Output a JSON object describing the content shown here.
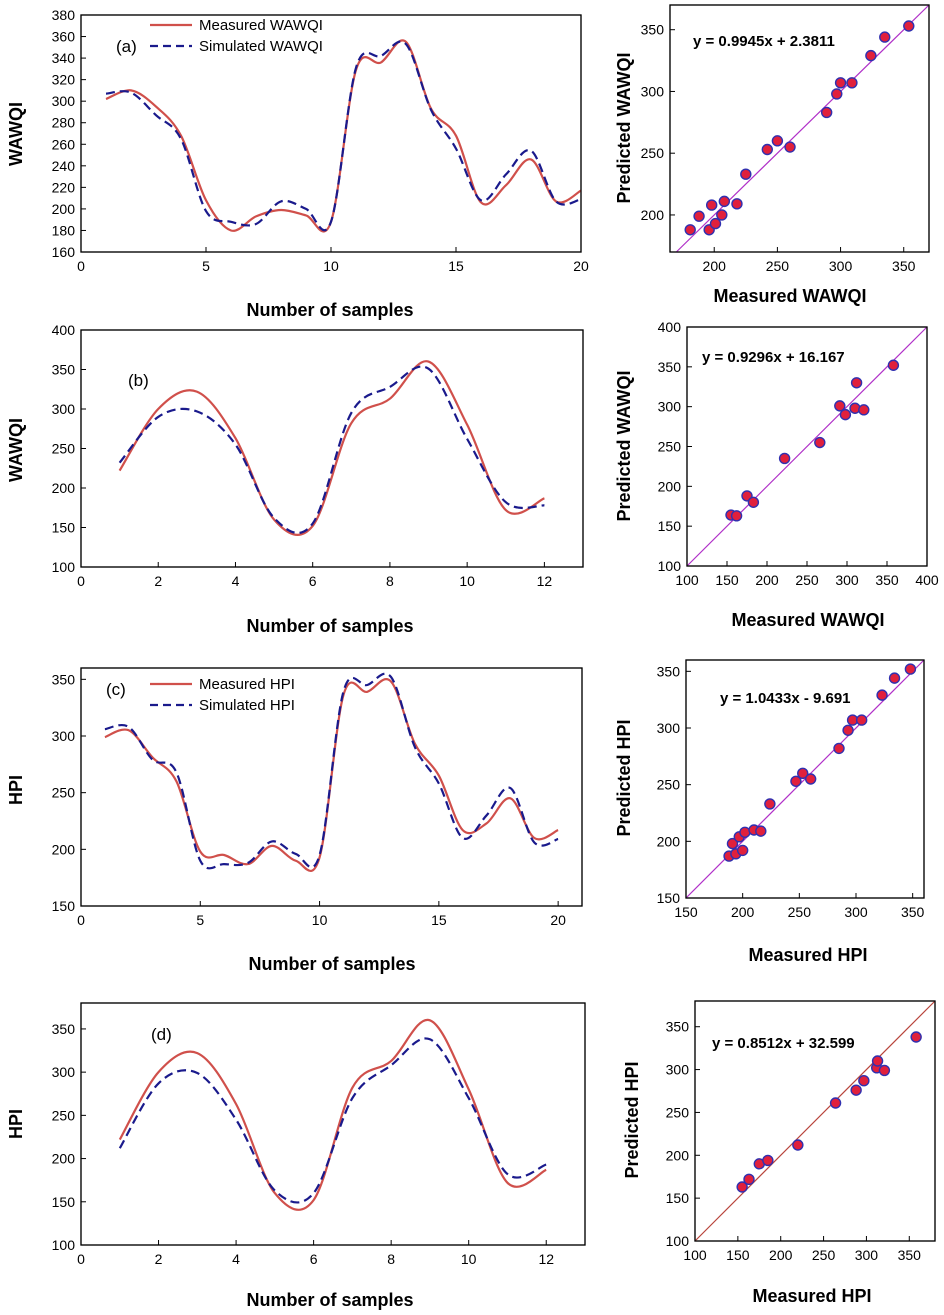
{
  "colors": {
    "measured": "#d0504b",
    "simulated": "#1a1a8c",
    "point_fill": "#e0203c",
    "point_edge": "#3030b0",
    "identity_purple": "#b030c8",
    "identity_red": "#b8453c"
  },
  "chart_data": [
    {
      "type": "line",
      "panel": "(a)",
      "legend": true,
      "x": [
        1,
        2,
        3,
        4,
        5,
        6,
        7,
        8,
        9,
        10,
        11,
        12,
        13,
        14,
        15,
        16,
        17,
        18,
        19,
        20
      ],
      "series": [
        {
          "name": "Measured WAWQI",
          "values": [
            302,
            310,
            295,
            268,
            208,
            180,
            193,
            199,
            194,
            188,
            329,
            336,
            355,
            293,
            268,
            206,
            222,
            246,
            207,
            217
          ]
        },
        {
          "name": "Simulated WAWQI",
          "values": [
            307,
            308,
            287,
            265,
            198,
            188,
            186,
            207,
            200,
            188,
            331,
            342,
            353,
            292,
            256,
            208,
            232,
            254,
            207,
            209
          ]
        }
      ],
      "xlabel": "Number of samples",
      "ylabel": "WAWQI",
      "xlim": [
        0,
        20
      ],
      "ylim": [
        160,
        380
      ],
      "xticks": [
        "0",
        "5",
        "10",
        "15",
        "20"
      ],
      "yticks": [
        "160",
        "180",
        "200",
        "220",
        "240",
        "260",
        "280",
        "300",
        "320",
        "340",
        "360",
        "380"
      ]
    },
    {
      "type": "scatter",
      "equation": "y = 0.9945x + 2.3811",
      "identity_line": "purple",
      "points": [
        [
          181,
          188
        ],
        [
          188,
          199
        ],
        [
          196,
          188
        ],
        [
          198,
          208
        ],
        [
          201,
          193
        ],
        [
          206,
          200
        ],
        [
          208,
          211
        ],
        [
          218,
          209
        ],
        [
          225,
          233
        ],
        [
          242,
          253
        ],
        [
          250,
          260
        ],
        [
          260,
          255
        ],
        [
          289,
          283
        ],
        [
          297,
          298
        ],
        [
          300,
          307
        ],
        [
          309,
          307
        ],
        [
          324,
          329
        ],
        [
          335,
          344
        ],
        [
          354,
          353
        ]
      ],
      "xlabel": "Measured WAWQI",
      "ylabel": "Predicted WAWQI",
      "xlim": [
        165,
        370
      ],
      "ylim": [
        170,
        370
      ],
      "xticks": [
        "200",
        "250",
        "300",
        "350"
      ],
      "yticks": [
        "200",
        "250",
        "300",
        "350"
      ]
    },
    {
      "type": "line",
      "panel": "(b)",
      "legend": false,
      "x": [
        1,
        2,
        3,
        4,
        5,
        6,
        7,
        8,
        9,
        10,
        11,
        12
      ],
      "series": [
        {
          "name": "Measured WAWQI",
          "values": [
            222,
            300,
            322,
            263,
            160,
            152,
            282,
            313,
            360,
            280,
            172,
            187
          ]
        },
        {
          "name": "Simulated WAWQI",
          "values": [
            232,
            290,
            297,
            255,
            162,
            155,
            295,
            328,
            351,
            262,
            182,
            178
          ]
        }
      ],
      "xlabel": "Number of samples",
      "ylabel": "WAWQI",
      "xlim": [
        0,
        13
      ],
      "ylim": [
        100,
        400
      ],
      "xticks": [
        "0",
        "2",
        "4",
        "6",
        "8",
        "10",
        "12"
      ],
      "yticks": [
        "100",
        "150",
        "200",
        "250",
        "300",
        "350",
        "400"
      ]
    },
    {
      "type": "scatter",
      "equation": "y = 0.9296x + 16.167",
      "identity_line": "purple",
      "points": [
        [
          155,
          164
        ],
        [
          162,
          163
        ],
        [
          175,
          188
        ],
        [
          183,
          180
        ],
        [
          222,
          235
        ],
        [
          266,
          255
        ],
        [
          291,
          301
        ],
        [
          298,
          290
        ],
        [
          310,
          298
        ],
        [
          312,
          330
        ],
        [
          321,
          296
        ],
        [
          358,
          352
        ]
      ],
      "xlabel": "Measured WAWQI",
      "ylabel": "Predicted WAWQI",
      "xlim": [
        100,
        400
      ],
      "ylim": [
        100,
        400
      ],
      "xticks": [
        "100",
        "150",
        "200",
        "250",
        "300",
        "350",
        "400"
      ],
      "yticks": [
        "100",
        "150",
        "200",
        "250",
        "300",
        "350",
        "400"
      ]
    },
    {
      "type": "line",
      "panel": "(c)",
      "legend": true,
      "x": [
        1,
        2,
        3,
        4,
        5,
        6,
        7,
        8,
        9,
        10,
        11,
        12,
        13,
        14,
        15,
        16,
        17,
        18,
        19,
        20
      ],
      "series": [
        {
          "name": "Measured HPI",
          "values": [
            299,
            305,
            281,
            260,
            198,
            195,
            187,
            203,
            190,
            193,
            336,
            339,
            348,
            293,
            265,
            217,
            223,
            245,
            210,
            217
          ]
        },
        {
          "name": "Simulated HPI",
          "values": [
            306,
            308,
            279,
            268,
            190,
            187,
            188,
            207,
            196,
            195,
            339,
            345,
            352,
            290,
            258,
            210,
            230,
            254,
            206,
            209
          ]
        }
      ],
      "xlabel": "Number of samples",
      "ylabel": "HPI",
      "xlim": [
        0,
        21
      ],
      "ylim": [
        150,
        360
      ],
      "xticks": [
        "0",
        "5",
        "10",
        "15",
        "20"
      ],
      "yticks": [
        "150",
        "200",
        "250",
        "300",
        "350"
      ]
    },
    {
      "type": "scatter",
      "equation": "y = 1.0433x - 9.691",
      "identity_line": "purple",
      "points": [
        [
          188,
          187
        ],
        [
          191,
          198
        ],
        [
          194,
          189
        ],
        [
          197,
          204
        ],
        [
          200,
          192
        ],
        [
          202,
          208
        ],
        [
          210,
          210
        ],
        [
          216,
          209
        ],
        [
          224,
          233
        ],
        [
          247,
          253
        ],
        [
          253,
          260
        ],
        [
          260,
          255
        ],
        [
          285,
          282
        ],
        [
          293,
          298
        ],
        [
          297,
          307
        ],
        [
          305,
          307
        ],
        [
          323,
          329
        ],
        [
          334,
          344
        ],
        [
          348,
          352
        ]
      ],
      "xlabel": "Measured HPI",
      "ylabel": "Predicted HPI",
      "xlim": [
        150,
        360
      ],
      "ylim": [
        150,
        360
      ],
      "xticks": [
        "150",
        "200",
        "250",
        "300",
        "350"
      ],
      "yticks": [
        "150",
        "200",
        "250",
        "300",
        "350"
      ]
    },
    {
      "type": "line",
      "panel": "(d)",
      "legend": false,
      "x": [
        1,
        2,
        3,
        4,
        5,
        6,
        7,
        8,
        9,
        10,
        11,
        12
      ],
      "series": [
        {
          "name": "Measured HPI",
          "values": [
            222,
            300,
            322,
            263,
            160,
            152,
            282,
            313,
            360,
            280,
            172,
            187
          ]
        },
        {
          "name": "Simulated HPI",
          "values": [
            212,
            287,
            299,
            245,
            163,
            160,
            270,
            308,
            338,
            270,
            182,
            193
          ]
        }
      ],
      "xlabel": "Number of samples",
      "ylabel": "HPI",
      "xlim": [
        0,
        13
      ],
      "ylim": [
        100,
        380
      ],
      "xticks": [
        "0",
        "2",
        "4",
        "6",
        "8",
        "10",
        "12"
      ],
      "yticks": [
        "100",
        "150",
        "200",
        "250",
        "300",
        "350"
      ]
    },
    {
      "type": "scatter",
      "equation": "y = 0.8512x + 32.599",
      "identity_line": "red",
      "points": [
        [
          155,
          163
        ],
        [
          163,
          172
        ],
        [
          175,
          190
        ],
        [
          185,
          194
        ],
        [
          220,
          212
        ],
        [
          264,
          261
        ],
        [
          288,
          276
        ],
        [
          297,
          287
        ],
        [
          312,
          302
        ],
        [
          313,
          310
        ],
        [
          321,
          299
        ],
        [
          358,
          338
        ]
      ],
      "xlabel": "Measured HPI",
      "ylabel": "Predicted HPI",
      "xlim": [
        100,
        380
      ],
      "ylim": [
        100,
        380
      ],
      "xticks": [
        "100",
        "150",
        "200",
        "250",
        "300",
        "350"
      ],
      "yticks": [
        "100",
        "150",
        "200",
        "250",
        "300",
        "350"
      ]
    }
  ]
}
